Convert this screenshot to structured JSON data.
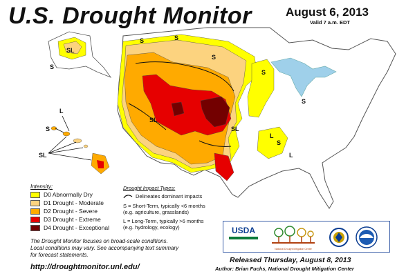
{
  "header": {
    "title": "U.S. Drought Monitor",
    "date": "August 6, 2013",
    "valid": "Valid 7 a.m. EDT"
  },
  "legend": {
    "heading": "Intensity:",
    "items": [
      {
        "code": "D0",
        "label": "D0 Abnormally Dry",
        "color": "#ffff00"
      },
      {
        "code": "D1",
        "label": "D1 Drought - Moderate",
        "color": "#fcd37f"
      },
      {
        "code": "D2",
        "label": "D2 Drought - Severe",
        "color": "#ffaa00"
      },
      {
        "code": "D3",
        "label": "D3 Drought - Extreme",
        "color": "#e60000"
      },
      {
        "code": "D4",
        "label": "D4 Drought - Exceptional",
        "color": "#730000"
      }
    ]
  },
  "impacts": {
    "heading": "Drought Impact Types:",
    "boundary": "Delineates dominant impacts",
    "short_term": "S = Short-Term, typically <6 months",
    "short_term_eg": "(e.g. agriculture, grasslands)",
    "long_term": "L = Long-Term, typically >6 months",
    "long_term_eg": "(e.g. hydrology, ecology)"
  },
  "map_labels": {
    "sl": "SL",
    "s": "S",
    "l": "L"
  },
  "note": {
    "line1": "The Drought Monitor focuses on broad-scale conditions.",
    "line2": "Local conditions may vary. See accompanying text summary",
    "line3": "for forecast statements."
  },
  "url": "http://droughtmonitor.unl.edu/",
  "footer": {
    "released": "Released Thursday, August 8, 2013",
    "author": "Author: Brian Fuchs, National Drought Mitigation Center"
  },
  "logos": {
    "usda": "USDA",
    "ndmc_caption": "National Drought Mitigation Center",
    "colors": {
      "usda_blue": "#0b3d91",
      "usda_green": "#0b7a3a",
      "panel_border": "#3a5ea8"
    }
  }
}
